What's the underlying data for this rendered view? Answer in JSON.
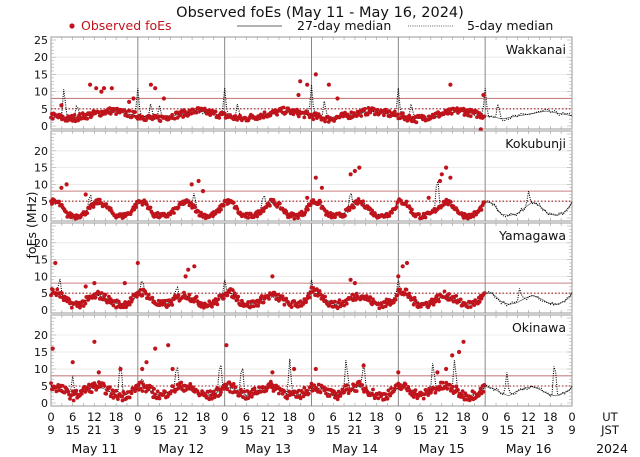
{
  "chart_data": {
    "type": "scatter",
    "title": "Observed foEs (May 11 - May 16, 2024)",
    "ylabel": "foEs (MHz)",
    "xlabel": "",
    "ylim": [
      0,
      25
    ],
    "yticks": [
      0,
      5,
      10,
      15,
      20
    ],
    "yticks_top_panel": [
      0,
      5,
      10,
      15,
      20,
      25
    ],
    "grid": true,
    "legend": {
      "placement": "top",
      "entries": [
        {
          "label": "Observed foEs",
          "style": "red-dot"
        },
        {
          "label": "27-day median",
          "style": "solid-line"
        },
        {
          "label": "5-day median",
          "style": "dotted-line"
        }
      ]
    },
    "x_axis": {
      "ut_label": "UT",
      "jst_label": "JST",
      "year_label": "2024",
      "days": [
        "May 11",
        "May 12",
        "May 13",
        "May 14",
        "May 15",
        "May 16"
      ],
      "ut_ticks": [
        "0",
        "6",
        "12",
        "18"
      ],
      "jst_ticks": [
        "9",
        "15",
        "21",
        "3"
      ],
      "end_ut": "0",
      "end_jst": "9",
      "data_days": 5,
      "total_days": 6
    },
    "reference_lines": {
      "solid_red_MHz": 8,
      "dotted_red_MHz": 5
    },
    "colors": {
      "observed": "#c0141c",
      "reference": "#c0141c",
      "median": "#000000",
      "grid": "#e6e6e6",
      "day_line": "#888888"
    },
    "panels": [
      {
        "station": "Wakkanai",
        "baseline": [
          3,
          2.5,
          2,
          2.5,
          3,
          3.5,
          4,
          4.5,
          4,
          3.5,
          3
        ],
        "noise": 1.0,
        "outliers": [
          [
            0.12,
            6
          ],
          [
            0.45,
            12
          ],
          [
            0.52,
            11
          ],
          [
            0.58,
            10
          ],
          [
            0.61,
            11
          ],
          [
            0.7,
            11
          ],
          [
            0.9,
            7
          ],
          [
            0.95,
            8
          ],
          [
            1.15,
            12
          ],
          [
            1.2,
            11
          ],
          [
            1.3,
            8
          ],
          [
            2.85,
            9
          ],
          [
            2.87,
            13
          ],
          [
            2.95,
            12
          ],
          [
            3.05,
            15
          ],
          [
            3.2,
            12
          ],
          [
            3.3,
            8
          ],
          [
            4.6,
            12
          ],
          [
            4.75,
            5
          ],
          [
            4.95,
            -1
          ],
          [
            4.98,
            9
          ]
        ],
        "median_spikes": [
          [
            0.15,
            12
          ],
          [
            0.3,
            7
          ],
          [
            1.0,
            11
          ],
          [
            1.15,
            7
          ],
          [
            1.25,
            6
          ],
          [
            2.0,
            11
          ],
          [
            2.15,
            7
          ],
          [
            3.0,
            12
          ],
          [
            3.15,
            8
          ],
          [
            4.0,
            11
          ],
          [
            4.15,
            7
          ],
          [
            5.0,
            11
          ],
          [
            5.15,
            7
          ]
        ]
      },
      {
        "station": "Kokubunji",
        "baseline": [
          5,
          4.5,
          1,
          0.5,
          1,
          3,
          5,
          3.5,
          1,
          0.5,
          1.5,
          4.5
        ],
        "noise": 0.8,
        "outliers": [
          [
            0.12,
            9
          ],
          [
            0.18,
            10
          ],
          [
            0.4,
            7
          ],
          [
            1.62,
            10
          ],
          [
            1.7,
            11
          ],
          [
            1.75,
            8
          ],
          [
            2.95,
            6
          ],
          [
            3.05,
            12
          ],
          [
            3.12,
            9
          ],
          [
            3.45,
            13
          ],
          [
            3.5,
            14
          ],
          [
            3.55,
            15
          ],
          [
            4.35,
            6
          ],
          [
            4.48,
            11
          ],
          [
            4.5,
            13
          ],
          [
            4.55,
            15
          ],
          [
            4.6,
            12
          ]
        ],
        "median_spikes": [
          [
            0.45,
            8
          ],
          [
            1.65,
            8
          ],
          [
            2.45,
            8
          ],
          [
            3.45,
            9
          ],
          [
            4.45,
            14
          ],
          [
            5.5,
            8
          ]
        ]
      },
      {
        "station": "Yamagawa",
        "baseline": [
          5.5,
          5,
          2.5,
          1.5,
          2,
          3.5,
          4.5,
          3.5,
          2,
          1.5,
          2.5,
          4.5
        ],
        "noise": 1.2,
        "outliers": [
          [
            0.05,
            14
          ],
          [
            0.4,
            7
          ],
          [
            0.5,
            8
          ],
          [
            0.85,
            8
          ],
          [
            1.0,
            14
          ],
          [
            1.55,
            10
          ],
          [
            1.58,
            12
          ],
          [
            1.65,
            13
          ],
          [
            2.55,
            10
          ],
          [
            3.45,
            9
          ],
          [
            3.5,
            8
          ],
          [
            4.0,
            10
          ],
          [
            4.05,
            13
          ],
          [
            4.1,
            14
          ]
        ],
        "median_spikes": [
          [
            0.1,
            10
          ],
          [
            1.05,
            10
          ],
          [
            1.45,
            8
          ],
          [
            2.0,
            9
          ],
          [
            3.0,
            9
          ],
          [
            4.0,
            9
          ],
          [
            5.4,
            7
          ]
        ]
      },
      {
        "station": "Okinawa",
        "baseline": [
          5,
          4.5,
          3,
          2,
          3.5,
          4.5,
          5,
          4,
          2.5,
          2,
          3,
          4.5
        ],
        "noise": 1.4,
        "outliers": [
          [
            0.02,
            16
          ],
          [
            0.25,
            12
          ],
          [
            0.5,
            18
          ],
          [
            0.55,
            9
          ],
          [
            0.8,
            10
          ],
          [
            1.05,
            10
          ],
          [
            1.1,
            12
          ],
          [
            1.2,
            16
          ],
          [
            1.35,
            17
          ],
          [
            1.4,
            10
          ],
          [
            2.02,
            17
          ],
          [
            2.55,
            9
          ],
          [
            2.8,
            10
          ],
          [
            3.05,
            10
          ],
          [
            3.6,
            11
          ],
          [
            4.0,
            9
          ],
          [
            4.45,
            9
          ],
          [
            4.55,
            10
          ],
          [
            4.62,
            14
          ],
          [
            4.7,
            15
          ],
          [
            4.75,
            18
          ]
        ],
        "median_spikes": [
          [
            0.25,
            8
          ],
          [
            0.8,
            14
          ],
          [
            1.05,
            8
          ],
          [
            1.45,
            13
          ],
          [
            1.95,
            14
          ],
          [
            2.2,
            13
          ],
          [
            2.75,
            13
          ],
          [
            3.4,
            14
          ],
          [
            3.6,
            13
          ],
          [
            4.4,
            13
          ],
          [
            4.65,
            14
          ],
          [
            5.25,
            9
          ],
          [
            5.8,
            14
          ]
        ]
      }
    ]
  }
}
